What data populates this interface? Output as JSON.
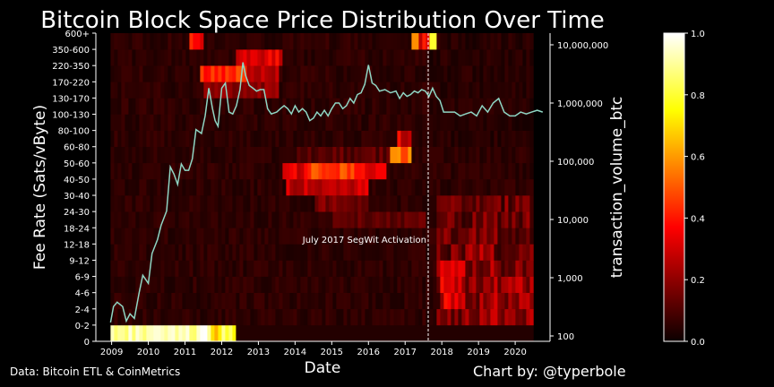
{
  "chart_data": {
    "type": "heatmap",
    "title": "Bitcoin Block Space Price Distribution Over Time",
    "xlabel": "Date",
    "ylabel": "Fee Rate (Sats/vByte)",
    "y2label": "transaction_volume_btc",
    "x_ticks": [
      "2009",
      "2010",
      "2011",
      "2012",
      "2013",
      "2014",
      "2015",
      "2016",
      "2017",
      "2018",
      "2019",
      "2020"
    ],
    "y_ticks": [
      "0",
      "0-2",
      "2-4",
      "4-6",
      "6-9",
      "9-12",
      "12-18",
      "18-24",
      "24-30",
      "30-40",
      "40-50",
      "50-60",
      "60-80",
      "80-100",
      "100-130",
      "130-170",
      "170-220",
      "220-350",
      "350-600",
      "600+"
    ],
    "y2_ticks": [
      "100",
      "1,000",
      "10,000",
      "100,000",
      "1,000,000",
      "10,000,000"
    ],
    "y2_scale": "log",
    "y2_range": [
      100,
      10000000
    ],
    "colorbar": {
      "colormap": "hot",
      "range": [
        0,
        1
      ],
      "ticks": [
        "0.0",
        "0.2",
        "0.4",
        "0.6",
        "0.8",
        "1.0"
      ]
    },
    "annotation": {
      "text": "July 2017 SegWit Activation",
      "x": 2017.58
    },
    "volume_series": {
      "x": [
        2008.97,
        2009.05,
        2009.15,
        2009.3,
        2009.4,
        2009.5,
        2009.62,
        2009.75,
        2009.85,
        2010.0,
        2010.1,
        2010.25,
        2010.35,
        2010.5,
        2010.6,
        2010.7,
        2010.8,
        2010.9,
        2011.0,
        2011.1,
        2011.2,
        2011.3,
        2011.45,
        2011.55,
        2011.65,
        2011.75,
        2011.82,
        2011.9,
        2012.0,
        2012.1,
        2012.2,
        2012.3,
        2012.4,
        2012.5,
        2012.58,
        2012.65,
        2012.75,
        2012.85,
        2012.95,
        2013.05,
        2013.15,
        2013.25,
        2013.35,
        2013.5,
        2013.6,
        2013.7,
        2013.8,
        2013.9,
        2014.0,
        2014.1,
        2014.2,
        2014.3,
        2014.4,
        2014.5,
        2014.6,
        2014.7,
        2014.8,
        2014.9,
        2015.0,
        2015.1,
        2015.2,
        2015.3,
        2015.4,
        2015.5,
        2015.6,
        2015.7,
        2015.8,
        2015.9,
        2016.0,
        2016.1,
        2016.2,
        2016.3,
        2016.45,
        2016.6,
        2016.75,
        2016.85,
        2016.95,
        2017.05,
        2017.15,
        2017.25,
        2017.35,
        2017.45,
        2017.55,
        2017.65,
        2017.75,
        2017.85,
        2017.95,
        2018.05,
        2018.2,
        2018.35,
        2018.5,
        2018.65,
        2018.8,
        2018.95,
        2019.1,
        2019.25,
        2019.4,
        2019.55,
        2019.7,
        2019.85,
        2020.0,
        2020.15,
        2020.3,
        2020.45,
        2020.6,
        2020.75
      ],
      "y": [
        170,
        320,
        380,
        320,
        180,
        240,
        200,
        550,
        1100,
        800,
        2600,
        4500,
        8000,
        14000,
        80000,
        60000,
        40000,
        90000,
        70000,
        70000,
        110000,
        350000,
        300000,
        600000,
        1800000,
        800000,
        500000,
        400000,
        1800000,
        2200000,
        700000,
        650000,
        900000,
        1700000,
        5000000,
        3000000,
        2000000,
        1800000,
        1600000,
        1700000,
        1700000,
        800000,
        650000,
        700000,
        800000,
        900000,
        800000,
        650000,
        900000,
        700000,
        800000,
        700000,
        500000,
        550000,
        700000,
        600000,
        750000,
        600000,
        800000,
        1000000,
        1000000,
        800000,
        900000,
        1200000,
        1000000,
        1400000,
        1500000,
        2100000,
        4500000,
        2200000,
        2000000,
        1600000,
        1700000,
        1500000,
        1600000,
        1200000,
        1500000,
        1300000,
        1400000,
        1600000,
        1500000,
        1700000,
        1600000,
        1300000,
        1800000,
        1300000,
        1100000,
        700000,
        700000,
        700000,
        600000,
        650000,
        700000,
        600000,
        900000,
        700000,
        1000000,
        1200000,
        700000,
        600000,
        600000,
        700000,
        650000,
        700000,
        750000,
        700000
      ]
    }
  },
  "footer": {
    "source": "Data: Bitcoin ETL & CoinMetrics",
    "credit": "Chart by: @typerbole"
  }
}
